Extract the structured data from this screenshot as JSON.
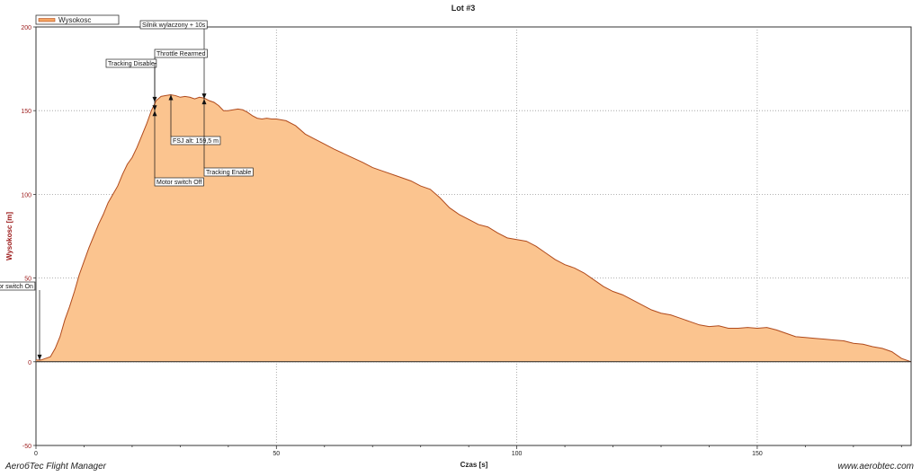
{
  "footer": {
    "left": "AeroбTec Flight Manager",
    "right": "www.aerobtec.com"
  },
  "chart_data": {
    "type": "area",
    "title": "Lot #3",
    "xlabel": "Czas [s]",
    "ylabel": "Wysokosc [m]",
    "xlim": [
      0,
      182
    ],
    "ylim": [
      -50,
      200
    ],
    "xticks": [
      0,
      50,
      100,
      150
    ],
    "yticks": [
      -50,
      0,
      50,
      100,
      150,
      200
    ],
    "grid": true,
    "legend": "top-left",
    "colors": {
      "fill": "#fbc48f",
      "line": "#b04a1c",
      "axis": "#333333",
      "label": "#9c1b1b"
    },
    "series": [
      {
        "name": "Wysokosc",
        "x": [
          0,
          1,
          2,
          3,
          4,
          5,
          6,
          7,
          8,
          9,
          10,
          11,
          12,
          13,
          14,
          15,
          16,
          17,
          18,
          19,
          20,
          21,
          22,
          23,
          24,
          25,
          26,
          27,
          28,
          29,
          30,
          31,
          32,
          33,
          34,
          35,
          36,
          37,
          38,
          39,
          40,
          41,
          42,
          43,
          44,
          45,
          46,
          47,
          48,
          49,
          50,
          52,
          54,
          56,
          58,
          60,
          62,
          65,
          68,
          70,
          72,
          75,
          78,
          80,
          82,
          84,
          86,
          88,
          90,
          92,
          94,
          96,
          98,
          100,
          102,
          104,
          106,
          108,
          110,
          112,
          114,
          116,
          118,
          120,
          122,
          124,
          126,
          128,
          130,
          132,
          134,
          136,
          138,
          140,
          142,
          144,
          146,
          148,
          150,
          152,
          154,
          156,
          158,
          160,
          162,
          164,
          166,
          168,
          170,
          172,
          174,
          176,
          178,
          180,
          182
        ],
        "values": [
          1.0,
          1.0,
          2.0,
          3.0,
          8.0,
          15.0,
          25.0,
          33.0,
          42.0,
          52.0,
          60.0,
          68.0,
          75.0,
          82.0,
          88.0,
          95.0,
          100.0,
          105.0,
          112.0,
          118.0,
          122.0,
          128.0,
          135.0,
          142.0,
          150.0,
          156.0,
          158.5,
          159.0,
          159.5,
          159.0,
          158.0,
          158.5,
          158.0,
          157.0,
          158.0,
          157.5,
          156.0,
          155.0,
          153.0,
          150.0,
          150.0,
          150.5,
          151.0,
          150.5,
          149.0,
          147.0,
          145.5,
          145.0,
          145.5,
          145.0,
          145.0,
          144.0,
          141.0,
          136.0,
          133.0,
          130.0,
          127.0,
          123.0,
          119.0,
          116.0,
          114.0,
          111.0,
          108.0,
          105.0,
          103.0,
          98.0,
          92.0,
          88.0,
          85.0,
          82.0,
          80.5,
          77.0,
          74.0,
          73.0,
          72.0,
          69.0,
          65.0,
          61.0,
          58.0,
          56.0,
          53.0,
          49.0,
          45.0,
          42.0,
          40.0,
          37.0,
          34.0,
          31.0,
          29.0,
          28.0,
          26.0,
          24.0,
          22.0,
          21.0,
          21.5,
          20.0,
          20.0,
          20.5,
          20.0,
          20.5,
          19.0,
          17.0,
          15.0,
          14.5,
          14.0,
          13.5,
          13.0,
          12.5,
          11.0,
          10.5,
          9.0,
          8.0,
          6.0,
          2.0,
          0.0
        ]
      }
    ],
    "annotations": [
      {
        "text": "Silnik wylaczony + 10s",
        "x": 34.5,
        "y": 157.0
      },
      {
        "text": "Throttle Rearmed",
        "x": 24.5,
        "y": 155.0
      },
      {
        "text": "Tracking Disable",
        "x": 24.5,
        "y": 150.0
      },
      {
        "text": "FSJ alt: 159,5 m",
        "x": 28.0,
        "y": 159.5
      },
      {
        "text": "Tracking Enable",
        "x": 35.0,
        "y": 157.0
      },
      {
        "text": "Motor switch Off",
        "x": 24.5,
        "y": 150.0
      },
      {
        "text": "or switch On",
        "x": 0.5,
        "y": 1.0
      }
    ]
  }
}
